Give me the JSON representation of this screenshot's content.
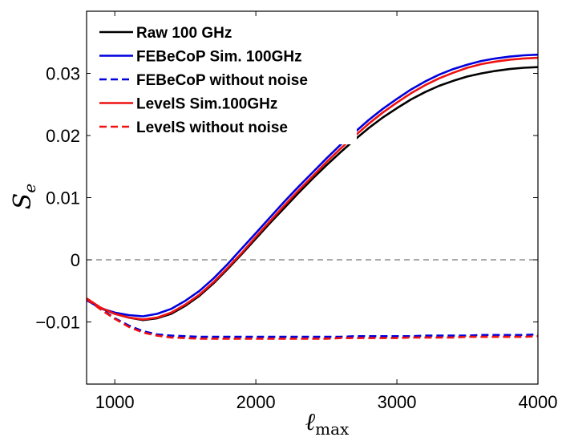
{
  "chart_data": {
    "type": "line",
    "title": "",
    "xlabel_main": "ℓ",
    "xlabel_sub": "max",
    "ylabel_main": "S",
    "ylabel_sub": "e",
    "xlim": [
      800,
      4000
    ],
    "ylim": [
      -0.02,
      0.04
    ],
    "x_ticks": [
      1000,
      2000,
      3000,
      4000
    ],
    "x_tick_labels": [
      "1000",
      "2000",
      "3000",
      "4000"
    ],
    "y_ticks": [
      -0.01,
      0,
      0.01,
      0.02,
      0.03
    ],
    "y_tick_labels": [
      "−0.01",
      "0",
      "0.01",
      "0.02",
      "0.03"
    ],
    "reference_line": {
      "y": 0,
      "color": "#555555",
      "dash": "dashed"
    },
    "grid": false,
    "legend_position": "top-left",
    "x": [
      800,
      900,
      1000,
      1100,
      1200,
      1300,
      1400,
      1500,
      1600,
      1700,
      1800,
      1900,
      2000,
      2100,
      2200,
      2300,
      2400,
      2500,
      2600,
      2700,
      2800,
      2900,
      3000,
      3100,
      3200,
      3300,
      3400,
      3500,
      3600,
      3700,
      3800,
      3900,
      4000
    ],
    "series": [
      {
        "name": "Raw 100 GHz",
        "color": "#000000",
        "dash": "solid",
        "values": [
          -0.0063,
          -0.0078,
          -0.0087,
          -0.0093,
          -0.0097,
          -0.0094,
          -0.0087,
          -0.0074,
          -0.0058,
          -0.0038,
          -0.0015,
          0.0009,
          0.0034,
          0.0059,
          0.0083,
          0.0107,
          0.013,
          0.0152,
          0.0173,
          0.0193,
          0.0212,
          0.0229,
          0.0244,
          0.0258,
          0.027,
          0.028,
          0.0288,
          0.0295,
          0.03,
          0.0304,
          0.0307,
          0.0309,
          0.031
        ]
      },
      {
        "name": "FEBeCoP Sim. 100GHz",
        "color": "#0000dd",
        "dash": "solid",
        "values": [
          -0.0065,
          -0.0078,
          -0.0085,
          -0.0089,
          -0.0091,
          -0.0087,
          -0.0079,
          -0.0066,
          -0.005,
          -0.003,
          -0.0007,
          0.0018,
          0.0043,
          0.0068,
          0.0093,
          0.0117,
          0.014,
          0.0163,
          0.0185,
          0.0205,
          0.0225,
          0.0243,
          0.0259,
          0.0274,
          0.0287,
          0.0298,
          0.0307,
          0.0314,
          0.032,
          0.0324,
          0.0327,
          0.0329,
          0.033
        ]
      },
      {
        "name": "FEBeCoP without noise",
        "color": "#0000dd",
        "dash": "dashed",
        "values": [
          -0.0063,
          -0.0079,
          -0.0094,
          -0.0106,
          -0.0115,
          -0.012,
          -0.0122,
          -0.0123,
          -0.0124,
          -0.0124,
          -0.0124,
          -0.0124,
          -0.0124,
          -0.0124,
          -0.0124,
          -0.0124,
          -0.0124,
          -0.0124,
          -0.0124,
          -0.0123,
          -0.0123,
          -0.0123,
          -0.0123,
          -0.0123,
          -0.0122,
          -0.0122,
          -0.0122,
          -0.0122,
          -0.0121,
          -0.0121,
          -0.0121,
          -0.0121,
          -0.012
        ]
      },
      {
        "name": "LevelS Sim.100GHz",
        "color": "#ee1111",
        "dash": "solid",
        "values": [
          -0.0062,
          -0.0077,
          -0.0087,
          -0.0093,
          -0.0096,
          -0.0093,
          -0.0085,
          -0.0072,
          -0.0056,
          -0.0036,
          -0.0013,
          0.0011,
          0.0037,
          0.0062,
          0.0087,
          0.0111,
          0.0134,
          0.0157,
          0.0179,
          0.0199,
          0.0219,
          0.0237,
          0.0253,
          0.0268,
          0.0281,
          0.0292,
          0.0301,
          0.0309,
          0.0315,
          0.0319,
          0.0322,
          0.0324,
          0.0325
        ]
      },
      {
        "name": "LevelS without noise",
        "color": "#ee1111",
        "dash": "dashed",
        "values": [
          -0.0063,
          -0.008,
          -0.0095,
          -0.0108,
          -0.0117,
          -0.0122,
          -0.0125,
          -0.0126,
          -0.0127,
          -0.0127,
          -0.0127,
          -0.0127,
          -0.0127,
          -0.0127,
          -0.0127,
          -0.0127,
          -0.0127,
          -0.0127,
          -0.0126,
          -0.0126,
          -0.0126,
          -0.0126,
          -0.0126,
          -0.0125,
          -0.0125,
          -0.0125,
          -0.0125,
          -0.0124,
          -0.0124,
          -0.0124,
          -0.0124,
          -0.0124,
          -0.0123
        ]
      }
    ]
  }
}
